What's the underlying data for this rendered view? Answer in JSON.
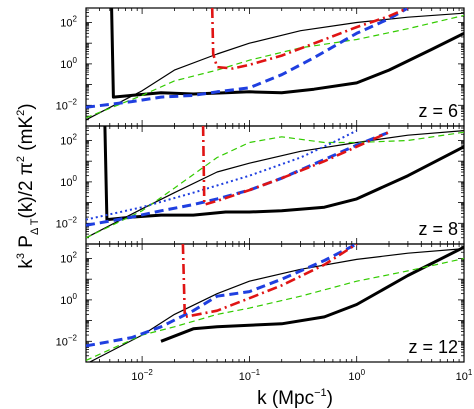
{
  "chart_data": {
    "type": "line",
    "xlabel": {
      "base": "k  (Mpc",
      "sup": "−1",
      "tail": ")"
    },
    "ylabel": {
      "p1": "k",
      "p1sup": "3",
      "p2": " P",
      "p2sub": "Δ T",
      "p3": "(k)/2 π",
      "p3sup": "2",
      "p4": "  (mK",
      "p4sup": "2",
      "p5": ")"
    },
    "x_scale": "log",
    "y_scale": "log",
    "xlim": [
      0.003,
      10
    ],
    "ylim": [
      0.001,
      500
    ],
    "x_ticks": [
      {
        "value": 0.01,
        "mant": "10",
        "exp": "−2"
      },
      {
        "value": 0.1,
        "mant": "10",
        "exp": "−1"
      },
      {
        "value": 1,
        "mant": "10",
        "exp": "0"
      },
      {
        "value": 10,
        "mant": "10",
        "exp": "1"
      }
    ],
    "y_ticks": [
      {
        "value": 0.01,
        "mant": "10",
        "exp": "−2"
      },
      {
        "value": 1,
        "mant": "10",
        "exp": "0"
      },
      {
        "value": 100,
        "mant": "10",
        "exp": "2"
      }
    ],
    "panels": [
      {
        "label": "z = 6",
        "series": [
          {
            "style": "thick-black",
            "color": "#000000",
            "points": [
              [
                0.0052,
                500
              ],
              [
                0.0054,
                0.025
              ],
              [
                0.008,
                0.03
              ],
              [
                0.015,
                0.04
              ],
              [
                0.03,
                0.035
              ],
              [
                0.06,
                0.04
              ],
              [
                0.1,
                0.045
              ],
              [
                0.2,
                0.04
              ],
              [
                0.4,
                0.06
              ],
              [
                1,
                0.12
              ],
              [
                2,
                0.5
              ],
              [
                5,
                5
              ],
              [
                10,
                30
              ]
            ]
          },
          {
            "style": "thin-black",
            "color": "#000000",
            "points": [
              [
                0.003,
                0.002
              ],
              [
                0.01,
                0.05
              ],
              [
                0.02,
                0.5
              ],
              [
                0.05,
                3
              ],
              [
                0.1,
                10
              ],
              [
                0.3,
                40
              ],
              [
                1,
                100
              ],
              [
                3,
                180
              ],
              [
                10,
                280
              ]
            ]
          },
          {
            "style": "green-dashed",
            "color": "#33cc00",
            "points": [
              [
                0.003,
                0.0025
              ],
              [
                0.01,
                0.03
              ],
              [
                0.02,
                0.15
              ],
              [
                0.05,
                0.5
              ],
              [
                0.1,
                1.5
              ],
              [
                0.3,
                6
              ],
              [
                1,
                15
              ],
              [
                3,
                50
              ],
              [
                10,
                220
              ]
            ]
          },
          {
            "style": "blue-dashed",
            "color": "#1f3fe0",
            "points": [
              [
                0.003,
                0.008
              ],
              [
                0.008,
                0.015
              ],
              [
                0.015,
                0.025
              ],
              [
                0.03,
                0.03
              ],
              [
                0.05,
                0.045
              ],
              [
                0.1,
                0.07
              ],
              [
                0.2,
                0.3
              ],
              [
                0.4,
                2
              ],
              [
                1,
                30
              ],
              [
                2,
                150
              ],
              [
                3,
                500
              ]
            ]
          },
          {
            "style": "red-dashdot",
            "color": "#e01414",
            "points": [
              [
                0.045,
                500
              ],
              [
                0.046,
                3
              ],
              [
                0.05,
                0.7
              ],
              [
                0.07,
                0.6
              ],
              [
                0.1,
                0.9
              ],
              [
                0.2,
                2.5
              ],
              [
                0.5,
                15
              ],
              [
                1,
                60
              ],
              [
                2,
                200
              ],
              [
                3,
                500
              ]
            ]
          }
        ]
      },
      {
        "label": "z = 8",
        "series": [
          {
            "style": "thick-black",
            "color": "#000000",
            "points": [
              [
                0.0045,
                500
              ],
              [
                0.0047,
                0.015
              ],
              [
                0.008,
                0.02
              ],
              [
                0.015,
                0.025
              ],
              [
                0.03,
                0.025
              ],
              [
                0.06,
                0.035
              ],
              [
                0.1,
                0.035
              ],
              [
                0.2,
                0.04
              ],
              [
                0.5,
                0.06
              ],
              [
                1,
                0.15
              ],
              [
                3,
                2
              ],
              [
                10,
                50
              ]
            ]
          },
          {
            "style": "thin-black",
            "color": "#000000",
            "points": [
              [
                0.003,
                0.002
              ],
              [
                0.01,
                0.05
              ],
              [
                0.02,
                0.3
              ],
              [
                0.05,
                3
              ],
              [
                0.1,
                8
              ],
              [
                0.3,
                30
              ],
              [
                1,
                80
              ],
              [
                3,
                180
              ],
              [
                10,
                300
              ]
            ]
          },
          {
            "style": "green-dashed",
            "color": "#33cc00",
            "points": [
              [
                0.003,
                0.002
              ],
              [
                0.01,
                0.04
              ],
              [
                0.02,
                0.5
              ],
              [
                0.05,
                15
              ],
              [
                0.1,
                80
              ],
              [
                0.2,
                150
              ],
              [
                0.5,
                80
              ],
              [
                1,
                80
              ],
              [
                3,
                100
              ],
              [
                10,
                250
              ]
            ]
          },
          {
            "style": "blue-dotted",
            "color": "#1f3fe0",
            "points": [
              [
                0.003,
                0.015
              ],
              [
                0.01,
                0.06
              ],
              [
                0.03,
                0.3
              ],
              [
                0.1,
                2
              ],
              [
                0.3,
                15
              ],
              [
                0.6,
                80
              ],
              [
                1,
                300
              ]
            ]
          },
          {
            "style": "blue-dashed",
            "color": "#1f3fe0",
            "points": [
              [
                0.003,
                0.008
              ],
              [
                0.008,
                0.02
              ],
              [
                0.015,
                0.04
              ],
              [
                0.03,
                0.08
              ],
              [
                0.05,
                0.15
              ],
              [
                0.1,
                0.4
              ],
              [
                0.2,
                1.5
              ],
              [
                0.5,
                12
              ],
              [
                1,
                60
              ],
              [
                2,
                250
              ]
            ]
          },
          {
            "style": "red-dashdot",
            "color": "#e01414",
            "points": [
              [
                0.037,
                500
              ],
              [
                0.038,
                0.08
              ],
              [
                0.05,
                0.12
              ],
              [
                0.1,
                0.4
              ],
              [
                0.2,
                1.5
              ],
              [
                0.5,
                10
              ],
              [
                1,
                50
              ],
              [
                2,
                250
              ]
            ]
          }
        ]
      },
      {
        "label": "z = 12",
        "series": [
          {
            "style": "thick-black",
            "color": "#000000",
            "points": [
              [
                0.015,
                0.01
              ],
              [
                0.03,
                0.04
              ],
              [
                0.05,
                0.05
              ],
              [
                0.1,
                0.06
              ],
              [
                0.2,
                0.07
              ],
              [
                0.5,
                0.15
              ],
              [
                1,
                0.6
              ],
              [
                3,
                15
              ],
              [
                10,
                350
              ]
            ]
          },
          {
            "style": "thin-black",
            "color": "#000000",
            "points": [
              [
                0.003,
                0.0008
              ],
              [
                0.01,
                0.02
              ],
              [
                0.02,
                0.2
              ],
              [
                0.05,
                2
              ],
              [
                0.1,
                8
              ],
              [
                0.3,
                30
              ],
              [
                1,
                90
              ],
              [
                3,
                180
              ],
              [
                10,
                300
              ]
            ]
          },
          {
            "style": "green-dashed",
            "color": "#33cc00",
            "points": [
              [
                0.003,
                0.0012
              ],
              [
                0.01,
                0.02
              ],
              [
                0.02,
                0.05
              ],
              [
                0.05,
                0.2
              ],
              [
                0.1,
                0.4
              ],
              [
                0.3,
                1.5
              ],
              [
                1,
                8
              ],
              [
                3,
                25
              ],
              [
                10,
                100
              ]
            ]
          },
          {
            "style": "blue-dashed",
            "color": "#1f3fe0",
            "points": [
              [
                0.003,
                0.006
              ],
              [
                0.008,
                0.015
              ],
              [
                0.015,
                0.05
              ],
              [
                0.03,
                0.3
              ],
              [
                0.05,
                1.5
              ],
              [
                0.1,
                2.5
              ],
              [
                0.2,
                10
              ],
              [
                0.5,
                80
              ],
              [
                1,
                500
              ]
            ]
          },
          {
            "style": "red-dashdot",
            "color": "#e01414",
            "points": [
              [
                0.024,
                500
              ],
              [
                0.025,
                0.15
              ],
              [
                0.05,
                0.3
              ],
              [
                0.1,
                1.2
              ],
              [
                0.2,
                5
              ],
              [
                0.5,
                50
              ],
              [
                1,
                500
              ]
            ]
          }
        ]
      }
    ]
  }
}
